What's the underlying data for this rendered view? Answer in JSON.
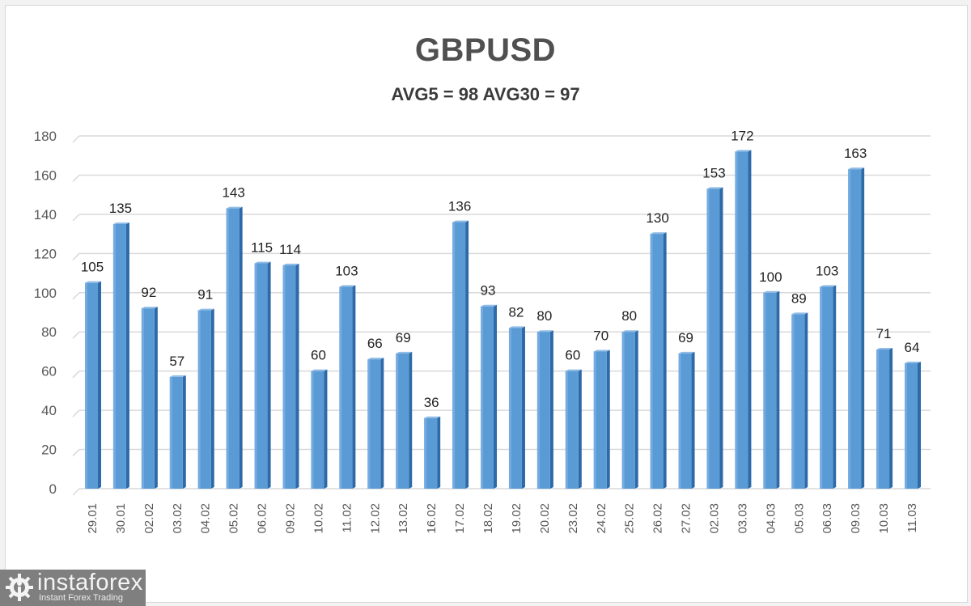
{
  "header": {
    "title": "GBPUSD",
    "subtitle": "AVG5 = 98 AVG30 = 97"
  },
  "logo": {
    "brand": "instaforex",
    "tagline": "Instant Forex Trading",
    "icon": "gear-person-icon"
  },
  "colors": {
    "bar_fill": "#5b9bd5",
    "bar_side": "#2e6aa8",
    "bar_top": "#8fbbe6",
    "grid": "#d9d9d9",
    "logo_bg": "#7f7f7f"
  },
  "chart_data": {
    "type": "bar",
    "title": "GBPUSD",
    "subtitle": "AVG5 = 98 AVG30 = 97",
    "xlabel": "",
    "ylabel": "",
    "ylim": [
      0,
      180
    ],
    "yticks": [
      0,
      20,
      40,
      60,
      80,
      100,
      120,
      140,
      160,
      180
    ],
    "grid": true,
    "legend": null,
    "style": "3d-column",
    "categories": [
      "29.01",
      "30.01",
      "02.02",
      "03.02",
      "04.02",
      "05.02",
      "06.02",
      "09.02",
      "10.02",
      "11.02",
      "12.02",
      "13.02",
      "16.02",
      "17.02",
      "18.02",
      "19.02",
      "20.02",
      "23.02",
      "24.02",
      "25.02",
      "26.02",
      "27.02",
      "02.03",
      "03.03",
      "04.03",
      "05.03",
      "06.03",
      "09.03",
      "10.03",
      "11.03"
    ],
    "values": [
      105,
      135,
      92,
      57,
      91,
      143,
      115,
      114,
      60,
      103,
      66,
      69,
      36,
      136,
      93,
      82,
      80,
      60,
      70,
      80,
      130,
      69,
      153,
      172,
      100,
      89,
      103,
      163,
      71,
      64
    ]
  }
}
